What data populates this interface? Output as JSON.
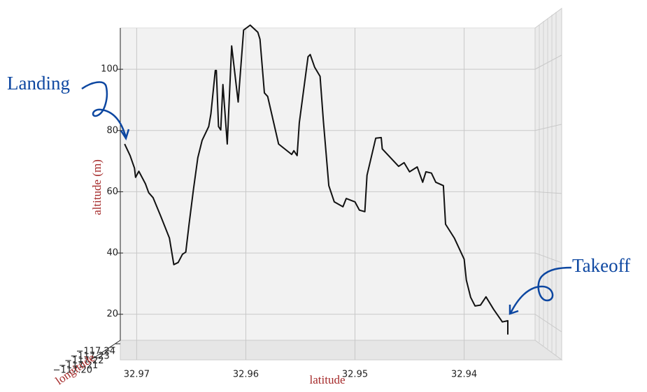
{
  "chart_data": {
    "type": "line",
    "x": [
      32.9711,
      32.9706,
      32.9702,
      32.9701,
      32.9698,
      32.9692,
      32.9689,
      32.9685,
      32.9678,
      32.967,
      32.9666,
      32.9662,
      32.9658,
      32.9655,
      32.9652,
      32.9648,
      32.9644,
      32.964,
      32.9634,
      32.9632,
      32.9628,
      32.9627,
      32.9625,
      32.9623,
      32.9621,
      32.9617,
      32.9613,
      32.9607,
      32.9602,
      32.9596,
      32.9589,
      32.9587,
      32.9583,
      32.958,
      32.957,
      32.9558,
      32.9556,
      32.9553,
      32.9551,
      32.9543,
      32.9541,
      32.9537,
      32.9532,
      32.9529,
      32.9524,
      32.9519,
      32.9511,
      32.9508,
      32.95,
      32.9496,
      32.9491,
      32.9489,
      32.9481,
      32.9476,
      32.9475,
      32.946,
      32.9455,
      32.945,
      32.9443,
      32.9438,
      32.9435,
      32.943,
      32.9426,
      32.9419,
      32.9417,
      32.9409,
      32.94,
      32.9398,
      32.9394,
      32.939,
      32.9385,
      32.938,
      32.9373,
      32.9365,
      32.936,
      32.936
    ],
    "values": [
      75.6,
      71.8,
      67.7,
      64.7,
      66.7,
      62.6,
      59.7,
      58.1,
      52.1,
      44.9,
      36.2,
      36.9,
      39.6,
      40.3,
      49.4,
      60.8,
      71.1,
      76.8,
      81.3,
      85.4,
      99.6,
      99.6,
      81.3,
      80.2,
      95.0,
      75.6,
      107.6,
      89.3,
      112.8,
      114.4,
      112.1,
      109.8,
      92.3,
      91.1,
      75.6,
      72.2,
      73.4,
      71.8,
      82.5,
      104.1,
      104.8,
      100.7,
      97.7,
      83.2,
      62.0,
      56.7,
      55.1,
      57.8,
      56.7,
      54.0,
      53.5,
      65.4,
      77.5,
      77.7,
      74.0,
      68.3,
      69.5,
      66.5,
      68.1,
      63.1,
      66.5,
      66.1,
      63.1,
      62.0,
      49.4,
      44.9,
      38.0,
      31.2,
      25.5,
      22.7,
      23.0,
      25.7,
      21.6,
      17.5,
      17.9,
      13.4
    ],
    "color": "#111111",
    "xlim": [
      32.9715,
      32.9335
    ],
    "xticks": [
      32.97,
      32.96,
      32.95,
      32.94
    ],
    "ylim": [
      11.5,
      116
    ],
    "yticks": [
      20,
      40,
      60,
      80,
      100
    ],
    "zticks": [
      {
        "value": -117.24,
        "label": "−117.24"
      },
      {
        "value": -117.23,
        "label": "−117.23"
      },
      {
        "value": -117.22,
        "label": "−117.22"
      },
      {
        "value": -117.21,
        "label": "−117.21"
      },
      {
        "value": -117.2,
        "label": "−117.20"
      }
    ],
    "xlabel": "latitude",
    "ylabel": "altitude (m)",
    "zlabel": "longitude",
    "annotations": [
      "Landing",
      "Takeoff"
    ],
    "grid": true
  }
}
